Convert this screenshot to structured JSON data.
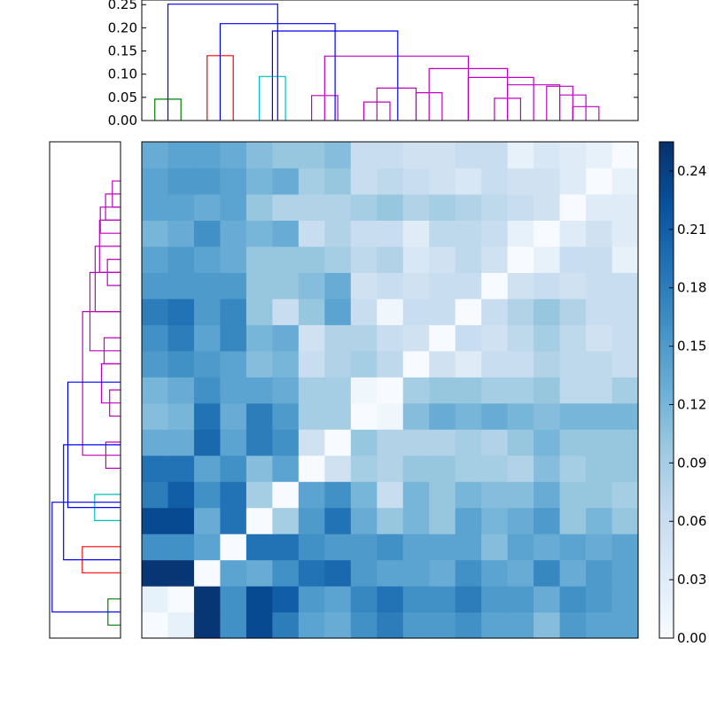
{
  "chart_data": [
    {
      "type": "dendrogram",
      "orientation": "top",
      "ylim": [
        0,
        0.26
      ],
      "y_ticks": [
        "0.00",
        "0.05",
        "0.10",
        "0.15",
        "0.20",
        "0.25"
      ],
      "colors": {
        "green": "#008000",
        "red": "#ff0000",
        "cyan": "#00bfbf",
        "magenta": "#bf00bf",
        "blue": "#0000ff"
      },
      "links": [
        {
          "left": 0.5,
          "right": 1.5,
          "height": 0.046,
          "color": "green"
        },
        {
          "left": 2.5,
          "right": 3.5,
          "height": 0.14,
          "color": "red"
        },
        {
          "left": 4.5,
          "right": 5.5,
          "height": 0.095,
          "color": "cyan"
        },
        {
          "left": 6.5,
          "right": 7.5,
          "height": 0.054,
          "color": "magenta"
        },
        {
          "left": 8.5,
          "right": 9.5,
          "height": 0.04,
          "color": "magenta"
        },
        {
          "left": 9.0,
          "right": 10.5,
          "height": 0.07,
          "color": "magenta"
        },
        {
          "left": 10.5,
          "right": 11.5,
          "height": 0.06,
          "color": "magenta"
        },
        {
          "left": 13.5,
          "right": 14.5,
          "height": 0.048,
          "color": "magenta"
        },
        {
          "left": 16.5,
          "right": 17.5,
          "height": 0.03,
          "color": "magenta"
        },
        {
          "left": 16.0,
          "right": 17.0,
          "height": 0.055,
          "color": "magenta"
        },
        {
          "left": 15.5,
          "right": 16.5,
          "height": 0.074,
          "color": "magenta"
        },
        {
          "left": 14.0,
          "right": 16.0,
          "height": 0.077,
          "color": "magenta"
        },
        {
          "left": 12.5,
          "right": 15.0,
          "height": 0.093,
          "color": "magenta"
        },
        {
          "left": 11.0,
          "right": 14.0,
          "height": 0.112,
          "color": "magenta"
        },
        {
          "left": 7.0,
          "right": 12.5,
          "height": 0.139,
          "color": "magenta"
        },
        {
          "left": 5.0,
          "right": 9.8,
          "height": 0.193,
          "color": "blue"
        },
        {
          "left": 3.0,
          "right": 7.4,
          "height": 0.209,
          "color": "blue"
        },
        {
          "left": 1.0,
          "right": 5.2,
          "height": 0.251,
          "color": "blue"
        }
      ]
    },
    {
      "type": "heatmap",
      "rows": 19,
      "cols": 19,
      "colormap": "Blues",
      "values": [
        [
          0.0,
          0.02,
          0.25,
          0.16,
          0.23,
          0.18,
          0.14,
          0.13,
          0.16,
          0.18,
          0.15,
          0.15,
          0.16,
          0.14,
          0.14,
          0.11,
          0.15,
          0.14,
          0.14
        ],
        [
          0.02,
          0.0,
          0.25,
          0.16,
          0.23,
          0.21,
          0.15,
          0.14,
          0.17,
          0.19,
          0.16,
          0.16,
          0.18,
          0.15,
          0.15,
          0.13,
          0.16,
          0.15,
          0.14
        ],
        [
          0.25,
          0.25,
          0.0,
          0.14,
          0.13,
          0.16,
          0.19,
          0.2,
          0.15,
          0.14,
          0.14,
          0.13,
          0.16,
          0.14,
          0.13,
          0.17,
          0.13,
          0.15,
          0.14
        ],
        [
          0.16,
          0.16,
          0.14,
          0.0,
          0.19,
          0.19,
          0.16,
          0.15,
          0.15,
          0.16,
          0.14,
          0.14,
          0.14,
          0.11,
          0.14,
          0.13,
          0.14,
          0.13,
          0.14
        ],
        [
          0.23,
          0.23,
          0.13,
          0.19,
          0.0,
          0.09,
          0.15,
          0.19,
          0.13,
          0.1,
          0.12,
          0.1,
          0.14,
          0.12,
          0.13,
          0.15,
          0.1,
          0.12,
          0.1
        ],
        [
          0.18,
          0.21,
          0.16,
          0.19,
          0.09,
          0.0,
          0.14,
          0.16,
          0.12,
          0.06,
          0.12,
          0.1,
          0.12,
          0.11,
          0.11,
          0.13,
          0.1,
          0.1,
          0.09
        ],
        [
          0.19,
          0.19,
          0.14,
          0.16,
          0.11,
          0.14,
          0.0,
          0.05,
          0.09,
          0.08,
          0.1,
          0.1,
          0.09,
          0.09,
          0.08,
          0.11,
          0.09,
          0.1,
          0.1
        ],
        [
          0.13,
          0.13,
          0.2,
          0.14,
          0.18,
          0.16,
          0.05,
          0.0,
          0.1,
          0.08,
          0.08,
          0.08,
          0.09,
          0.08,
          0.1,
          0.12,
          0.1,
          0.1,
          0.1
        ],
        [
          0.11,
          0.12,
          0.19,
          0.13,
          0.18,
          0.15,
          0.09,
          0.09,
          0.0,
          0.01,
          0.11,
          0.13,
          0.12,
          0.13,
          0.12,
          0.11,
          0.12,
          0.12,
          0.12
        ],
        [
          0.12,
          0.13,
          0.16,
          0.14,
          0.14,
          0.13,
          0.09,
          0.09,
          0.01,
          0.0,
          0.09,
          0.1,
          0.1,
          0.09,
          0.09,
          0.1,
          0.07,
          0.07,
          0.09
        ],
        [
          0.15,
          0.16,
          0.15,
          0.14,
          0.11,
          0.12,
          0.06,
          0.08,
          0.09,
          0.07,
          0.0,
          0.05,
          0.03,
          0.06,
          0.06,
          0.08,
          0.07,
          0.07,
          0.06
        ],
        [
          0.16,
          0.18,
          0.14,
          0.17,
          0.12,
          0.13,
          0.05,
          0.08,
          0.08,
          0.06,
          0.05,
          0.0,
          0.06,
          0.05,
          0.07,
          0.09,
          0.07,
          0.05,
          0.06
        ],
        [
          0.18,
          0.19,
          0.15,
          0.17,
          0.1,
          0.06,
          0.1,
          0.14,
          0.06,
          0.01,
          0.06,
          0.06,
          0.0,
          0.06,
          0.08,
          0.1,
          0.08,
          0.06,
          0.06
        ],
        [
          0.15,
          0.15,
          0.15,
          0.15,
          0.1,
          0.1,
          0.11,
          0.13,
          0.05,
          0.06,
          0.05,
          0.06,
          0.06,
          0.0,
          0.05,
          0.06,
          0.05,
          0.06,
          0.06
        ],
        [
          0.14,
          0.15,
          0.14,
          0.13,
          0.1,
          0.1,
          0.1,
          0.09,
          0.07,
          0.08,
          0.04,
          0.05,
          0.07,
          0.05,
          0.0,
          0.02,
          0.06,
          0.06,
          0.02
        ],
        [
          0.12,
          0.13,
          0.16,
          0.13,
          0.12,
          0.13,
          0.06,
          0.08,
          0.06,
          0.06,
          0.03,
          0.07,
          0.07,
          0.06,
          0.02,
          0.0,
          0.03,
          0.05,
          0.03
        ],
        [
          0.14,
          0.14,
          0.13,
          0.14,
          0.1,
          0.08,
          0.08,
          0.08,
          0.09,
          0.1,
          0.08,
          0.09,
          0.08,
          0.07,
          0.06,
          0.05,
          0.0,
          0.03,
          0.03
        ],
        [
          0.14,
          0.15,
          0.15,
          0.14,
          0.12,
          0.13,
          0.09,
          0.1,
          0.06,
          0.07,
          0.06,
          0.05,
          0.04,
          0.06,
          0.05,
          0.05,
          0.03,
          0.0,
          0.02
        ],
        [
          0.13,
          0.14,
          0.14,
          0.13,
          0.11,
          0.1,
          0.1,
          0.11,
          0.06,
          0.06,
          0.05,
          0.05,
          0.06,
          0.06,
          0.02,
          0.04,
          0.03,
          0.02,
          0.0
        ]
      ]
    },
    {
      "type": "colorbar",
      "ylim": [
        0,
        0.255
      ],
      "ticks": [
        "0.00",
        "0.03",
        "0.06",
        "0.09",
        "0.12",
        "0.15",
        "0.18",
        "0.21",
        "0.24"
      ]
    }
  ]
}
